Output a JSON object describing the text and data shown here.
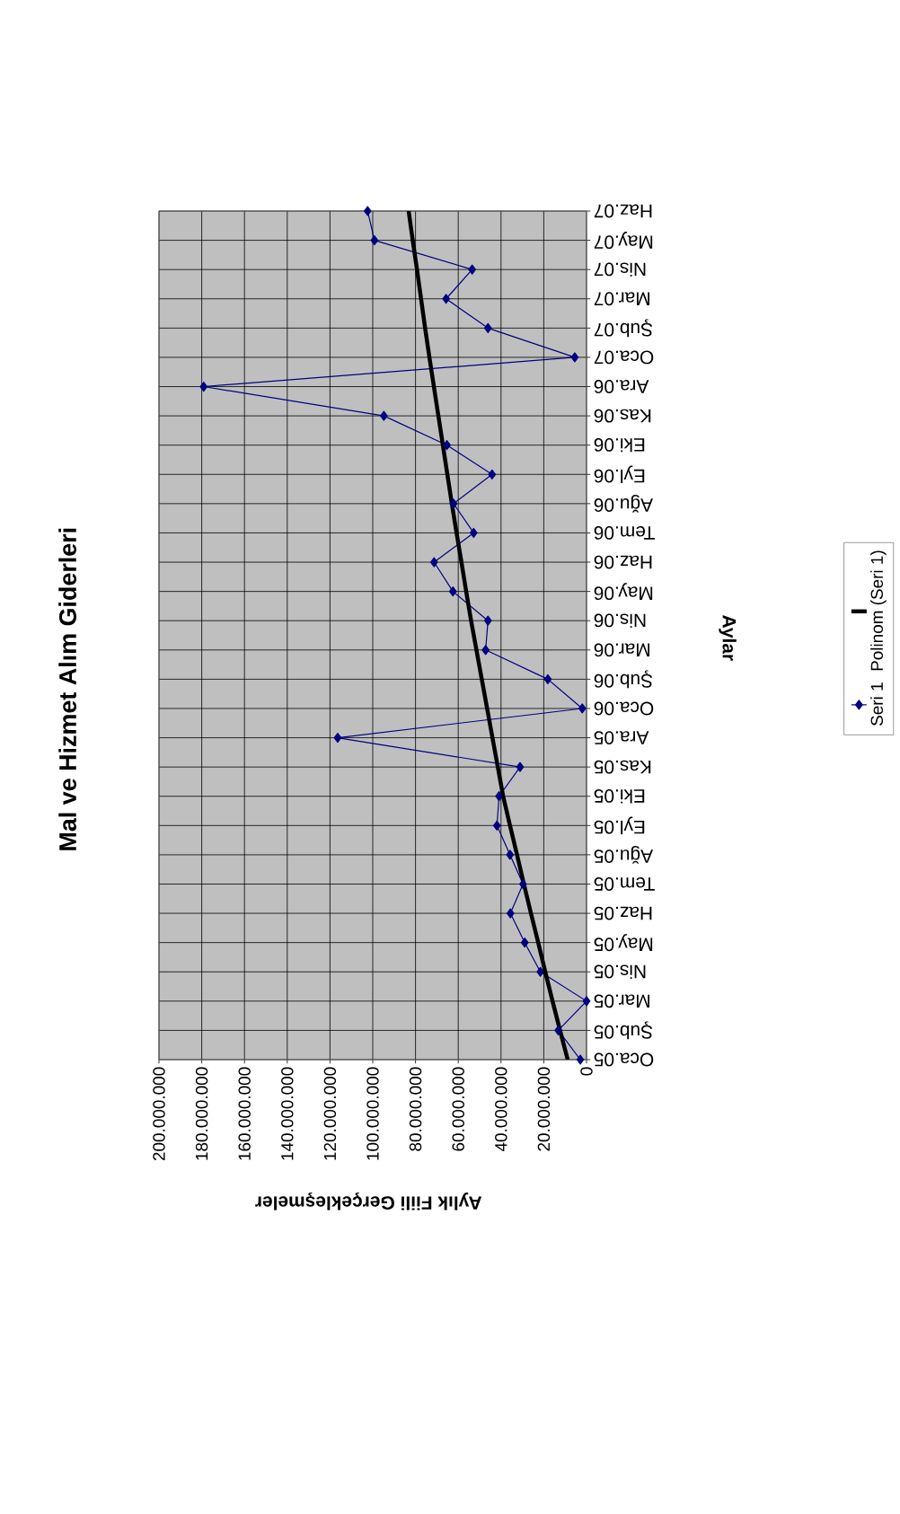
{
  "chart_data": {
    "type": "line",
    "orientation": "horizontal",
    "title": "Mal ve Hizmet Alım Giderleri",
    "ylabel": "Aylar",
    "xlabel": "Aylık Fiili Gerçekleşmeler",
    "categories": [
      "Haz.07",
      "May.07",
      "Nis.07",
      "Mar.07",
      "Şub.07",
      "Oca.07",
      "Ara.06",
      "Kas.06",
      "Eki.06",
      "Eyl.06",
      "Ağu.06",
      "Tem.06",
      "Haz.06",
      "May.06",
      "Nis.06",
      "Mar.06",
      "Şub.06",
      "Oca.06",
      "Ara.05",
      "Kas.05",
      "Eki.05",
      "Eyl.05",
      "Ağu.05",
      "Tem.05",
      "Haz.05",
      "May.05",
      "Nis.05",
      "Mar.05",
      "Şub.05",
      "Oca.05"
    ],
    "series": [
      {
        "name": "Seri 1",
        "color": "#000080",
        "marker": "diamond",
        "values": [
          102400000,
          99200000,
          53500000,
          65700000,
          46100000,
          5500000,
          179100000,
          94800000,
          65300000,
          44200000,
          62200000,
          52800000,
          71300000,
          62500000,
          46100000,
          47200000,
          18100000,
          2000000,
          116400000,
          31100000,
          40900000,
          41900000,
          35800000,
          29700000,
          35600000,
          28900000,
          21600000,
          0,
          13200000,
          2900000
        ]
      },
      {
        "name": "Polinom (Seri 1)",
        "type": "line",
        "color": "#000000",
        "marker": "none",
        "values": [
          83200000,
          81300000,
          79300000,
          77400000,
          75500000,
          73500000,
          71400000,
          69300000,
          67200000,
          65100000,
          63000000,
          60800000,
          58500000,
          56300000,
          54000000,
          51500000,
          49000000,
          46500000,
          44000000,
          41500000,
          39000000,
          35800000,
          32500000,
          29300000,
          26000000,
          22600000,
          19300000,
          15900000,
          12400000,
          8800000
        ]
      }
    ],
    "xlim": [
      200000000,
      0
    ],
    "xticks": [
      0,
      {
        "value": 20000000,
        "label": "20.000.000"
      },
      {
        "value": 40000000,
        "label": "40.000.000"
      },
      {
        "value": 60000000,
        "label": "60.000.000"
      },
      {
        "value": 80000000,
        "label": "80.000.000"
      },
      {
        "value": 100000000,
        "label": "100.000.000"
      },
      {
        "value": 120000000,
        "label": "120.000.000"
      },
      {
        "value": 140000000,
        "label": "140.000.000"
      },
      {
        "value": 160000000,
        "label": "160.000.000"
      },
      {
        "value": 180000000,
        "label": "180.000.000"
      },
      {
        "value": 200000000,
        "label": "200.000.000"
      }
    ],
    "grid": true,
    "legend": "right",
    "line_style": "solid"
  }
}
